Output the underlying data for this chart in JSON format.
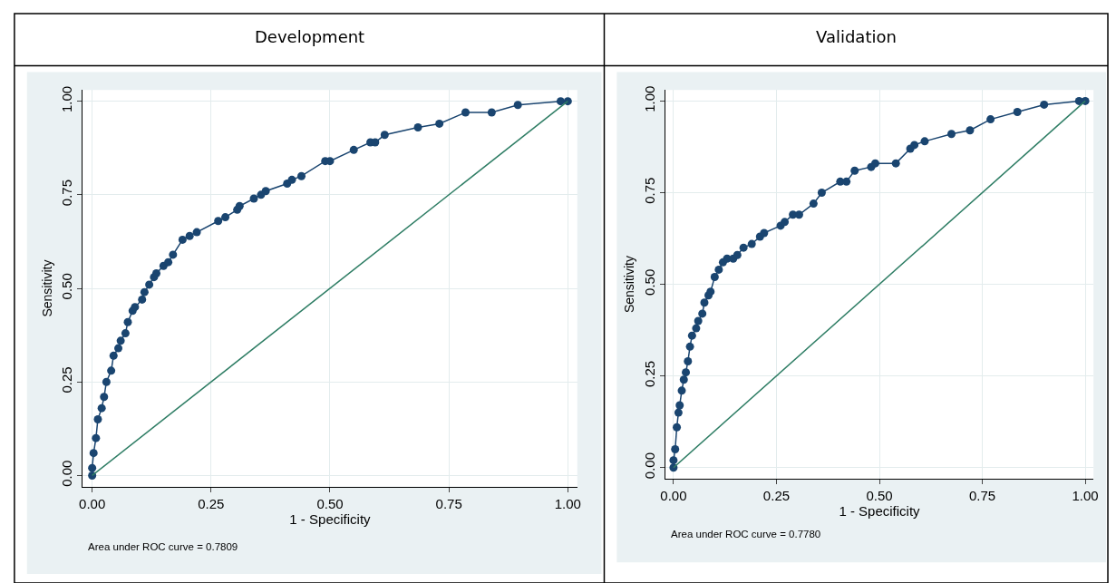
{
  "chart_data": [
    {
      "type": "line",
      "title": "Development",
      "xlabel": "1 - Specificity",
      "ylabel": "Sensitivity",
      "grid": true,
      "xlim": [
        -0.02,
        1.02
      ],
      "ylim": [
        -0.03,
        1.03
      ],
      "xticks": [
        {
          "value": 0,
          "label": "0.00"
        },
        {
          "value": 0.25,
          "label": "0.25"
        },
        {
          "value": 0.5,
          "label": "0.50"
        },
        {
          "value": 0.75,
          "label": "0.75"
        },
        {
          "value": 1,
          "label": "1.00"
        }
      ],
      "yticks": [
        {
          "value": 0,
          "label": "0.00"
        },
        {
          "value": 0.25,
          "label": "0.25"
        },
        {
          "value": 0.5,
          "label": "0.50"
        },
        {
          "value": 0.75,
          "label": "0.75"
        },
        {
          "value": 1,
          "label": "1.00"
        }
      ],
      "annotations": [
        "Area under ROC curve = 0.7809"
      ],
      "series": [
        {
          "color": "#1a4570",
          "marker": "circle",
          "x": [
            0,
            0,
            0.003,
            0.008,
            0.012,
            0.02,
            0.025,
            0.03,
            0.04,
            0.045,
            0.055,
            0.06,
            0.07,
            0.075,
            0.085,
            0.09,
            0.105,
            0.11,
            0.12,
            0.13,
            0.135,
            0.15,
            0.16,
            0.17,
            0.19,
            0.205,
            0.22,
            0.265,
            0.28,
            0.305,
            0.31,
            0.34,
            0.355,
            0.365,
            0.41,
            0.42,
            0.44,
            0.49,
            0.5,
            0.55,
            0.585,
            0.595,
            0.615,
            0.685,
            0.73,
            0.785,
            0.84,
            0.895,
            0.985,
            1.0
          ],
          "values": [
            0,
            0.02,
            0.06,
            0.1,
            0.15,
            0.18,
            0.21,
            0.25,
            0.28,
            0.32,
            0.34,
            0.36,
            0.38,
            0.41,
            0.44,
            0.45,
            0.47,
            0.49,
            0.51,
            0.53,
            0.54,
            0.56,
            0.57,
            0.59,
            0.63,
            0.64,
            0.65,
            0.68,
            0.69,
            0.71,
            0.72,
            0.74,
            0.75,
            0.76,
            0.78,
            0.79,
            0.8,
            0.84,
            0.84,
            0.87,
            0.89,
            0.89,
            0.91,
            0.93,
            0.94,
            0.97,
            0.97,
            0.99,
            1.0,
            1.0
          ]
        },
        {
          "color": "#2e7d64",
          "marker": "none",
          "x": [
            0,
            1
          ],
          "values": [
            0,
            1
          ]
        }
      ]
    },
    {
      "type": "line",
      "title": "Validation",
      "xlabel": "1 - Specificity",
      "ylabel": "Sensitivity",
      "grid": true,
      "xlim": [
        -0.02,
        1.02
      ],
      "ylim": [
        -0.03,
        1.03
      ],
      "xticks": [
        {
          "value": 0,
          "label": "0.00"
        },
        {
          "value": 0.25,
          "label": "0.25"
        },
        {
          "value": 0.5,
          "label": "0.50"
        },
        {
          "value": 0.75,
          "label": "0.75"
        },
        {
          "value": 1,
          "label": "1.00"
        }
      ],
      "yticks": [
        {
          "value": 0,
          "label": "0.00"
        },
        {
          "value": 0.25,
          "label": "0.25"
        },
        {
          "value": 0.5,
          "label": "0.50"
        },
        {
          "value": 0.75,
          "label": "0.75"
        },
        {
          "value": 1,
          "label": "1.00"
        }
      ],
      "annotations": [
        "Area under ROC curve = 0.7780"
      ],
      "series": [
        {
          "color": "#1a4570",
          "marker": "circle",
          "x": [
            0,
            0,
            0.004,
            0.008,
            0.012,
            0.015,
            0.02,
            0.025,
            0.03,
            0.035,
            0.04,
            0.045,
            0.055,
            0.06,
            0.07,
            0.075,
            0.085,
            0.09,
            0.1,
            0.11,
            0.12,
            0.13,
            0.145,
            0.155,
            0.17,
            0.19,
            0.21,
            0.22,
            0.26,
            0.27,
            0.29,
            0.305,
            0.34,
            0.36,
            0.405,
            0.42,
            0.44,
            0.48,
            0.49,
            0.54,
            0.575,
            0.585,
            0.61,
            0.675,
            0.72,
            0.77,
            0.835,
            0.9,
            0.985,
            1.0
          ],
          "values": [
            0,
            0.02,
            0.05,
            0.11,
            0.15,
            0.17,
            0.21,
            0.24,
            0.26,
            0.29,
            0.33,
            0.36,
            0.38,
            0.4,
            0.42,
            0.45,
            0.47,
            0.48,
            0.52,
            0.54,
            0.56,
            0.57,
            0.57,
            0.58,
            0.6,
            0.61,
            0.63,
            0.64,
            0.66,
            0.67,
            0.69,
            0.69,
            0.72,
            0.75,
            0.78,
            0.78,
            0.81,
            0.82,
            0.83,
            0.83,
            0.87,
            0.88,
            0.89,
            0.91,
            0.92,
            0.95,
            0.97,
            0.99,
            1.0,
            1.0
          ]
        },
        {
          "color": "#2e7d64",
          "marker": "none",
          "x": [
            0,
            1
          ],
          "values": [
            0,
            1
          ]
        }
      ]
    }
  ]
}
